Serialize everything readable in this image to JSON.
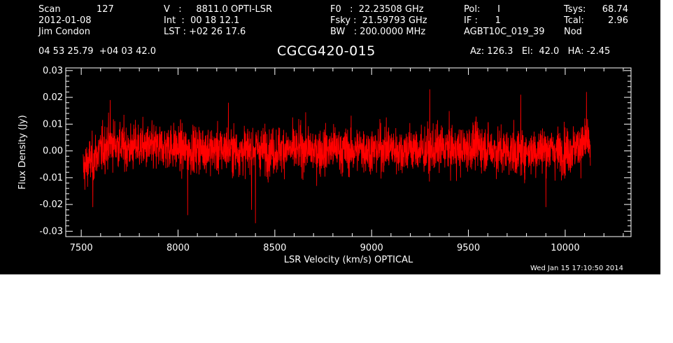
{
  "colors": {
    "background": "#000000",
    "foreground": "#ffffff",
    "trace": "#ff0000"
  },
  "header": {
    "col1": {
      "scan_label": "Scan",
      "scan_value": "127",
      "date": "2012-01-08",
      "observer": "Jim Condon"
    },
    "col2": {
      "v_line": "V   :     8811.0 OPTI-LSR",
      "int_line": "Int  :  00 18 12.1",
      "lst_line": "LST : +02 26 17.6"
    },
    "col3": {
      "f0_line": "F0   :  22.23508 GHz",
      "fsky_line": "Fsky :  21.59793 GHz",
      "bw_line": "BW   : 200.0000 MHz"
    },
    "col4": {
      "pol_line": "Pol:      I",
      "if_line": "IF :      1",
      "project": "AGBT10C_019_39"
    },
    "col5": {
      "tsys_label": "Tsys:",
      "tsys_value": "68.74",
      "tcal_label": "Tcal:",
      "tcal_value": "2.96",
      "mode": "Nod"
    },
    "coords": "04 53 25.79  +04 03 42.0",
    "source": "CGCG420-015",
    "pointing": "Az: 126.3   El:  42.0   HA: -2.45"
  },
  "timestamp": "Wed Jan 15 17:10:50 2014",
  "chart_data": {
    "type": "line",
    "title": "CGCG420-015",
    "xlabel": "LSR Velocity (km/s) OPTICAL",
    "ylabel": "Flux Density (Jy)",
    "xlim": [
      7420,
      10340
    ],
    "ylim": [
      -0.032,
      0.031
    ],
    "x_ticks": [
      7500,
      8000,
      8500,
      9000,
      9500,
      10000
    ],
    "x_tick_labels": [
      "7500",
      "8000",
      "8500",
      "9000",
      "9500",
      "10000"
    ],
    "y_ticks": [
      -0.03,
      -0.02,
      -0.01,
      0.0,
      0.01,
      0.02,
      0.03
    ],
    "y_tick_labels": [
      "-0.03",
      "-0.02",
      "-0.01",
      "0.00",
      "0.01",
      "0.02",
      "0.03"
    ],
    "grid": false,
    "series": [
      {
        "color": "#ff0000",
        "x": [
          7510,
          7540,
          7570,
          7600,
          7630,
          7660,
          7700,
          7750,
          7800,
          7850,
          7900,
          7950,
          8000,
          8050,
          8100,
          8150,
          8200,
          8250,
          8300,
          8350,
          8400,
          8450,
          8500,
          8550,
          8600,
          8650,
          8700,
          8750,
          8800,
          8850,
          8900,
          8950,
          9000,
          9050,
          9100,
          9150,
          9200,
          9250,
          9300,
          9350,
          9400,
          9450,
          9500,
          9550,
          9600,
          9650,
          9700,
          9750,
          9800,
          9850,
          9900,
          9950,
          10000,
          10050,
          10080,
          10110,
          10130
        ],
        "y": [
          -0.007,
          -0.004,
          -0.002,
          0.0,
          0.002,
          0.003,
          0.002,
          0.001,
          0.002,
          0.001,
          0.001,
          0.002,
          0.001,
          0.0,
          0.001,
          0.001,
          0.0,
          0.001,
          0.0,
          0.0,
          0.001,
          0.0,
          0.0,
          0.001,
          0.0,
          0.001,
          0.0,
          0.0,
          0.001,
          0.0,
          0.0,
          0.001,
          0.0,
          0.001,
          0.001,
          0.0,
          0.001,
          0.0,
          0.0,
          0.001,
          0.001,
          0.0,
          0.001,
          0.002,
          0.001,
          0.0,
          0.0,
          -0.001,
          0.0,
          0.0,
          0.001,
          0.0,
          0.0,
          0.001,
          0.002,
          0.003,
          0.001
        ],
        "noise_rms": 0.006,
        "extremes": [
          {
            "x": 8400,
            "y": -0.027
          },
          {
            "x": 8050,
            "y": -0.024
          },
          {
            "x": 8380,
            "y": -0.022
          },
          {
            "x": 7560,
            "y": -0.021
          },
          {
            "x": 9900,
            "y": -0.021
          },
          {
            "x": 9300,
            "y": 0.023
          },
          {
            "x": 10110,
            "y": 0.022
          },
          {
            "x": 9770,
            "y": 0.021
          },
          {
            "x": 7650,
            "y": 0.019
          },
          {
            "x": 8260,
            "y": 0.018
          }
        ]
      }
    ]
  }
}
